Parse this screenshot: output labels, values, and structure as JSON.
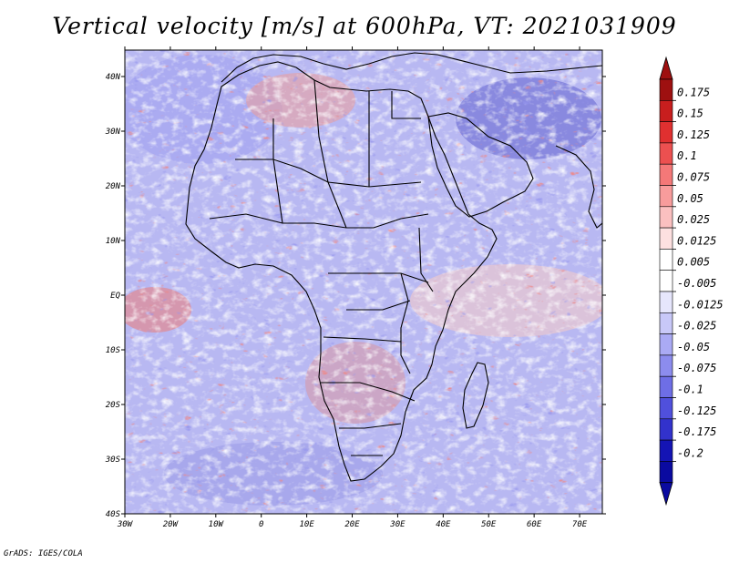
{
  "title": "Vertical velocity [m/s] at 600hPa, VT: 2021031909",
  "credit": "GrADS: IGES/COLA",
  "map": {
    "lon_labels": [
      "30W",
      "20W",
      "10W",
      "0",
      "10E",
      "20E",
      "30E",
      "40E",
      "50E",
      "60E",
      "70E"
    ],
    "lat_labels": [
      "40N",
      "30N",
      "20N",
      "10N",
      "EQ",
      "10S",
      "20S",
      "30S",
      "40S"
    ]
  },
  "colorbar": {
    "labels": [
      "0.175",
      "0.15",
      "0.125",
      "0.1",
      "0.075",
      "0.05",
      "0.025",
      "0.0125",
      "0.005",
      "-0.005",
      "-0.0125",
      "-0.025",
      "-0.05",
      "-0.075",
      "-0.1",
      "-0.125",
      "-0.175",
      "-0.2"
    ],
    "colors": [
      "#9e1010",
      "#c81e1e",
      "#e03030",
      "#ec5050",
      "#f47878",
      "#f89c9c",
      "#fbc0c0",
      "#fde0e0",
      "#ffffff",
      "#ffffff",
      "#e6e6fc",
      "#c8c8f8",
      "#aaaaf4",
      "#8c8cee",
      "#6e6ee6",
      "#5050dc",
      "#3232cc",
      "#1414b4",
      "#0a0aa0"
    ],
    "top_arrow_color": "#9e1010",
    "bottom_arrow_color": "#0a0aa0"
  }
}
